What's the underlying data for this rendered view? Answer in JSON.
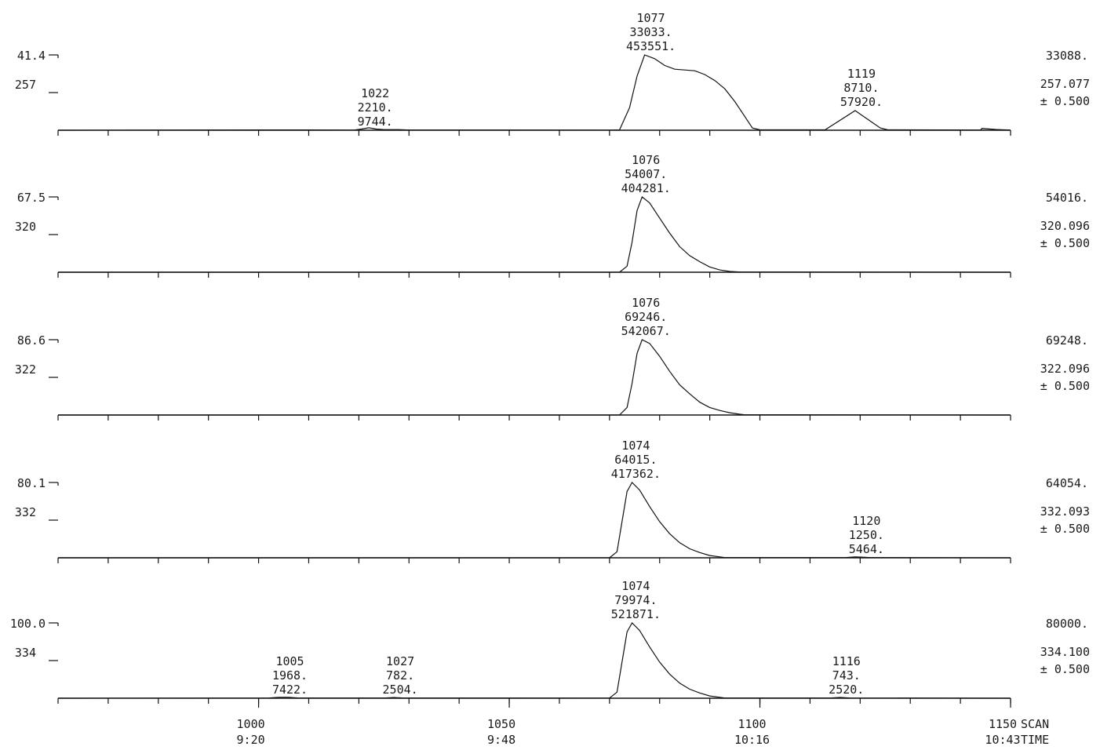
{
  "chart_data": {
    "type": "line",
    "x_axis": {
      "label_scan": "SCAN",
      "label_time": "TIME",
      "range": [
        960,
        1150
      ],
      "ticks": [
        {
          "scan": "1000",
          "time": "9:20",
          "value": 1000
        },
        {
          "scan": "1050",
          "time": "9:48",
          "value": 1050
        },
        {
          "scan": "1100",
          "time": "10:16",
          "value": 1100
        },
        {
          "scan": "1150",
          "time": "10:43",
          "value": 1150
        }
      ]
    },
    "panels": [
      {
        "scale_pct": "41.4",
        "mass_label": "257",
        "max_count": "33088.",
        "mass": "257.077",
        "window": "±  0.500",
        "rel_max": 41.4,
        "peaks": [
          {
            "scan": "1077",
            "height": "33033.",
            "area": "453551.",
            "x": 1077
          },
          {
            "scan": "1022",
            "height": "2210.",
            "area": "9744.",
            "x": 1022
          },
          {
            "scan": "1119",
            "height": "8710.",
            "area": "57920.",
            "x": 1119
          }
        ],
        "trace": [
          [
            960,
            0
          ],
          [
            1005,
            0.4
          ],
          [
            1015,
            0.3
          ],
          [
            1019,
            0.2
          ],
          [
            1020.5,
            1.6
          ],
          [
            1022,
            3.2
          ],
          [
            1023.5,
            1.6
          ],
          [
            1025,
            0.8
          ],
          [
            1028,
            0.8
          ],
          [
            1030,
            0.3
          ],
          [
            1070,
            0.2
          ],
          [
            1072,
            0.4
          ],
          [
            1074,
            30
          ],
          [
            1075.5,
            72
          ],
          [
            1077,
            100
          ],
          [
            1079,
            95
          ],
          [
            1081,
            86
          ],
          [
            1083,
            81
          ],
          [
            1085,
            80
          ],
          [
            1087,
            79
          ],
          [
            1089,
            74
          ],
          [
            1091,
            66
          ],
          [
            1093,
            55
          ],
          [
            1095,
            38
          ],
          [
            1097,
            18
          ],
          [
            1098.5,
            3
          ],
          [
            1100,
            0.5
          ],
          [
            1113,
            0.5
          ],
          [
            1119,
            26
          ],
          [
            1124,
            3
          ],
          [
            1125.5,
            0.5
          ],
          [
            1144,
            0.3
          ],
          [
            1144.3,
            2.5
          ],
          [
            1147,
            1
          ],
          [
            1150,
            0.3
          ]
        ]
      },
      {
        "scale_pct": "67.5",
        "mass_label": "320",
        "max_count": "54016.",
        "mass": "320.096",
        "window": "±  0.500",
        "rel_max": 67.5,
        "peaks": [
          {
            "scan": "1076",
            "height": "54007.",
            "area": "404281.",
            "x": 1076
          }
        ],
        "trace": [
          [
            960,
            0
          ],
          [
            1072,
            0
          ],
          [
            1073.5,
            8
          ],
          [
            1074.5,
            40
          ],
          [
            1075.5,
            82
          ],
          [
            1076.5,
            100
          ],
          [
            1078,
            92
          ],
          [
            1080,
            72
          ],
          [
            1082,
            52
          ],
          [
            1084,
            34
          ],
          [
            1086,
            22
          ],
          [
            1088,
            14
          ],
          [
            1090,
            7
          ],
          [
            1092,
            3
          ],
          [
            1094,
            1
          ],
          [
            1096,
            0.3
          ],
          [
            1150,
            0
          ]
        ]
      },
      {
        "scale_pct": "86.6",
        "mass_label": "322",
        "max_count": "69248.",
        "mass": "322.096",
        "window": "±  0.500",
        "rel_max": 86.6,
        "peaks": [
          {
            "scan": "1076",
            "height": "69246.",
            "area": "542067.",
            "x": 1076
          }
        ],
        "trace": [
          [
            960,
            0
          ],
          [
            1072,
            0
          ],
          [
            1073.5,
            10
          ],
          [
            1074.5,
            42
          ],
          [
            1075.5,
            82
          ],
          [
            1076.5,
            100
          ],
          [
            1078,
            95
          ],
          [
            1080,
            78
          ],
          [
            1082,
            58
          ],
          [
            1084,
            40
          ],
          [
            1086,
            28
          ],
          [
            1088,
            17
          ],
          [
            1090,
            10
          ],
          [
            1092,
            6
          ],
          [
            1094,
            3
          ],
          [
            1096,
            1
          ],
          [
            1097,
            0.3
          ],
          [
            1150,
            0
          ]
        ]
      },
      {
        "scale_pct": "80.1",
        "mass_label": "332",
        "max_count": "64054.",
        "mass": "332.093",
        "window": "±  0.500",
        "rel_max": 80.1,
        "peaks": [
          {
            "scan": "1074",
            "height": "64015.",
            "area": "417362.",
            "x": 1074
          },
          {
            "scan": "1120",
            "height": "1250.",
            "area": "5464.",
            "x": 1120
          }
        ],
        "trace": [
          [
            960,
            0
          ],
          [
            1070,
            0
          ],
          [
            1071.5,
            8
          ],
          [
            1072.5,
            48
          ],
          [
            1073.5,
            88
          ],
          [
            1074.5,
            100
          ],
          [
            1076,
            90
          ],
          [
            1078,
            68
          ],
          [
            1080,
            48
          ],
          [
            1082,
            32
          ],
          [
            1084,
            20
          ],
          [
            1086,
            12
          ],
          [
            1088,
            7
          ],
          [
            1090,
            3
          ],
          [
            1092,
            1.2
          ],
          [
            1093,
            0.3
          ],
          [
            1117,
            0.3
          ],
          [
            1119,
            1.2
          ],
          [
            1121,
            0.6
          ],
          [
            1122,
            0.3
          ],
          [
            1150,
            0
          ]
        ]
      },
      {
        "scale_pct": "100.0",
        "mass_label": "334",
        "max_count": "80000.",
        "mass": "334.100",
        "window": "±  0.500",
        "rel_max": 100.0,
        "peaks": [
          {
            "scan": "1074",
            "height": "79974.",
            "area": "521871.",
            "x": 1074
          },
          {
            "scan": "1005",
            "height": "1968.",
            "area": "7422.",
            "x": 1005
          },
          {
            "scan": "1027",
            "height": "782.",
            "area": "2504.",
            "x": 1027
          },
          {
            "scan": "1116",
            "height": "743.",
            "area": "2520.",
            "x": 1116
          }
        ],
        "trace": [
          [
            960,
            0
          ],
          [
            1002,
            0.3
          ],
          [
            1004,
            1.2
          ],
          [
            1006,
            1.2
          ],
          [
            1008,
            0.3
          ],
          [
            1025,
            0.3
          ],
          [
            1027,
            0.9
          ],
          [
            1029,
            0.3
          ],
          [
            1070,
            0.2
          ],
          [
            1071.5,
            8
          ],
          [
            1072.5,
            48
          ],
          [
            1073.5,
            88
          ],
          [
            1074.5,
            100
          ],
          [
            1076,
            90
          ],
          [
            1078,
            68
          ],
          [
            1080,
            48
          ],
          [
            1082,
            32
          ],
          [
            1084,
            20
          ],
          [
            1086,
            12
          ],
          [
            1088,
            7
          ],
          [
            1090,
            3
          ],
          [
            1092,
            1.2
          ],
          [
            1093,
            0.3
          ],
          [
            1114,
            0.3
          ],
          [
            1116,
            1
          ],
          [
            1118,
            0.3
          ],
          [
            1150,
            0
          ]
        ]
      }
    ]
  }
}
